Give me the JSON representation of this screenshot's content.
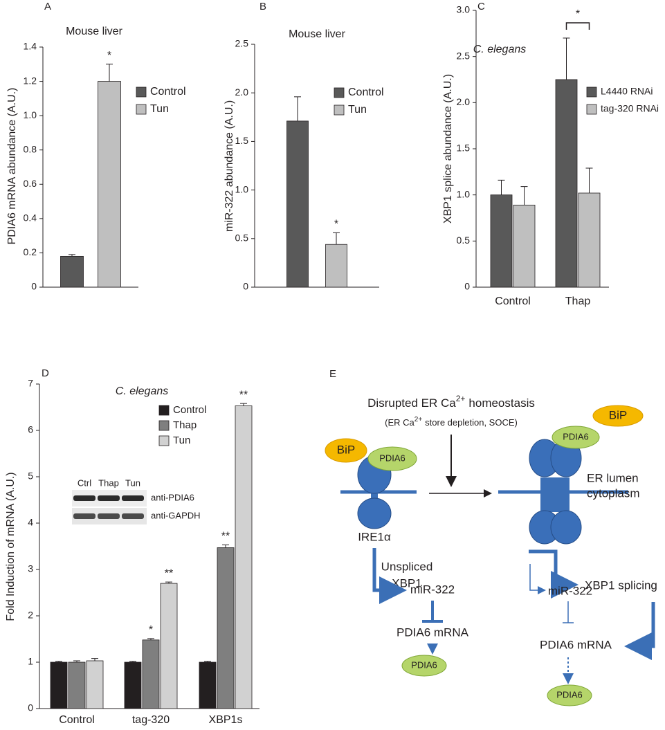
{
  "chart_data": [
    {
      "type": "bar",
      "panel": "A",
      "title": "Mouse liver",
      "ylabel": "PDIA6 mRNA abundance (A.U.)",
      "categories": [
        null
      ],
      "series": [
        {
          "name": "Control",
          "color": "#595959",
          "values": [
            0.18
          ],
          "errors": [
            0.01
          ],
          "significance": [
            null
          ]
        },
        {
          "name": "Tun",
          "color": "#bfbfbf",
          "values": [
            1.2
          ],
          "errors": [
            0.1
          ],
          "significance": [
            "*"
          ]
        }
      ],
      "ylim": [
        0,
        1.4
      ],
      "yticks": [
        0,
        0.2,
        0.4,
        0.6,
        0.8,
        {
          "value": 1,
          "label": "1.0"
        },
        1.2,
        1.4
      ]
    },
    {
      "type": "bar",
      "panel": "B",
      "title": "Mouse liver",
      "ylabel": "miR-322 abundance (A.U.)",
      "categories": [
        null
      ],
      "series": [
        {
          "name": "Control",
          "color": "#595959",
          "values": [
            1.71
          ],
          "errors": [
            0.25
          ],
          "significance": [
            null
          ]
        },
        {
          "name": "Tun",
          "color": "#bfbfbf",
          "values": [
            0.44
          ],
          "errors": [
            0.12
          ],
          "significance": [
            "*"
          ]
        }
      ],
      "ylim": [
        0,
        2.5
      ],
      "yticks": [
        0,
        0.5,
        {
          "value": 1,
          "label": "1.0"
        },
        1.5,
        {
          "value": 2,
          "label": "2.0"
        },
        2.5
      ]
    },
    {
      "type": "bar",
      "panel": "C",
      "title": "C. elegans",
      "ylabel": "XBP1 splice abundance (A.U.)",
      "categories": [
        "Control",
        "Thap"
      ],
      "bracket_significance": [
        null,
        "*"
      ],
      "series": [
        {
          "name": "L4440 RNAi",
          "color": "#595959",
          "values": [
            1.0,
            2.25
          ],
          "errors": [
            0.16,
            0.45
          ],
          "significance": [
            null,
            null
          ]
        },
        {
          "name": "tag-320 RNAi",
          "color": "#bfbfbf",
          "values": [
            0.89,
            1.02
          ],
          "errors": [
            0.2,
            0.27
          ],
          "significance": [
            null,
            null
          ]
        }
      ],
      "ylim": [
        0,
        3
      ],
      "yticks": [
        0,
        0.5,
        {
          "value": 1,
          "label": "1.0"
        },
        1.5,
        {
          "value": 2,
          "label": "2.0"
        },
        2.5,
        {
          "value": 3,
          "label": "3.0"
        }
      ]
    },
    {
      "type": "bar",
      "panel": "D",
      "title": "C. elegans",
      "ylabel": "Fold Induction of mRNA (A.U.)",
      "categories": [
        "Control",
        "tag-320",
        "XBP1s"
      ],
      "series": [
        {
          "name": "Control",
          "color": "#231f20",
          "values": [
            1,
            1,
            1
          ],
          "errors": [
            0.02,
            0.02,
            0.02
          ],
          "significance": [
            null,
            null,
            null
          ]
        },
        {
          "name": "Thap",
          "color": "#7f7f7f",
          "values": [
            1.0,
            1.48,
            3.47
          ],
          "errors": [
            0.03,
            0.03,
            0.06
          ],
          "significance": [
            null,
            "*",
            "**"
          ]
        },
        {
          "name": "Tun",
          "color": "#d1d1d1",
          "values": [
            1.03,
            2.7,
            6.53
          ],
          "errors": [
            0.05,
            0.03,
            0.05
          ],
          "significance": [
            null,
            "**",
            "**"
          ]
        }
      ],
      "ylim": [
        0,
        7
      ],
      "yticks": [
        0,
        1,
        2,
        3,
        4,
        5,
        6,
        7
      ],
      "inset": {
        "lanes": [
          "Ctrl",
          "Thap",
          "Tun"
        ],
        "rows": [
          "anti-PDIA6",
          "anti-GAPDH"
        ]
      }
    }
  ],
  "diagram": {
    "panel": "E",
    "stimulus": {
      "text": "Disrupted ER Ca",
      "sup": "2+",
      "rest": "homeostasis"
    },
    "stimulus_detail": {
      "text": "(ER Ca",
      "sup": "2+",
      "rest": "store depletion, SOCE)"
    },
    "free_bip": "BiP",
    "left": {
      "bip": "BiP",
      "pdia6": "PDIA6",
      "ire1": "IRE1α",
      "unspliced": [
        "Unspliced",
        "XBP1"
      ],
      "mir": "miR-322",
      "mrna": "PDIA6 mRNA",
      "protein": "PDIA6"
    },
    "right": {
      "pdia6": "PDIA6",
      "lumen": "ER lumen",
      "cytoplasm": "cytoplasm",
      "splicing": "XBP1 splicing",
      "mir": "miR-322",
      "mrna": "PDIA6 mRNA",
      "protein": "PDIA6"
    }
  }
}
